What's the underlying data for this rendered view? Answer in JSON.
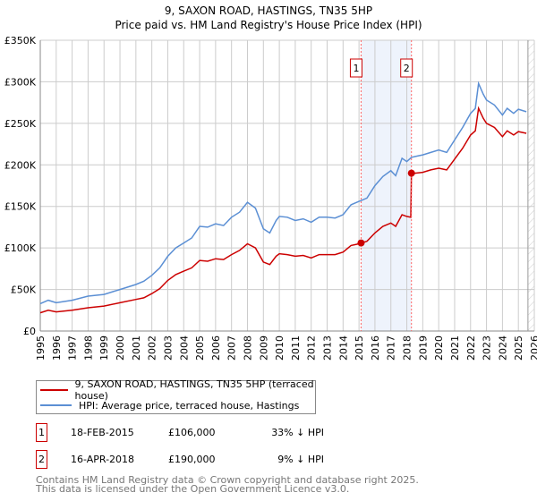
{
  "chart_data": {
    "type": "line",
    "title": "9, SAXON ROAD, HASTINGS, TN35 5HP",
    "subtitle": "Price paid vs. HM Land Registry's House Price Index (HPI)",
    "xlim": [
      1995,
      2026
    ],
    "ylim": [
      0,
      350000
    ],
    "grid": true,
    "x_ticks": [
      "1995",
      "1996",
      "1997",
      "1998",
      "1999",
      "2000",
      "2001",
      "2002",
      "2003",
      "2004",
      "2005",
      "2006",
      "2007",
      "2008",
      "2009",
      "2010",
      "2011",
      "2012",
      "2013",
      "2014",
      "2015",
      "2016",
      "2017",
      "2018",
      "2019",
      "2020",
      "2021",
      "2022",
      "2023",
      "2024",
      "2025",
      "2026"
    ],
    "y_ticks": [
      {
        "v": 0,
        "label": "£0"
      },
      {
        "v": 50000,
        "label": "£50K"
      },
      {
        "v": 100000,
        "label": "£100K"
      },
      {
        "v": 150000,
        "label": "£150K"
      },
      {
        "v": 200000,
        "label": "£200K"
      },
      {
        "v": 250000,
        "label": "£250K"
      },
      {
        "v": 300000,
        "label": "£300K"
      },
      {
        "v": 350000,
        "label": "£350K"
      }
    ],
    "highlight_range": [
      2015.13,
      2018.29
    ],
    "forecast_from": 2025.6,
    "series": [
      {
        "name": "9, SAXON ROAD, HASTINGS, TN35 5HP (terraced house)",
        "color": "#cc0000",
        "x": [
          1995,
          1995.5,
          1996,
          1997,
          1998,
          1999,
          2000,
          2001,
          2001.5,
          2002,
          2002.5,
          2003,
          2003.5,
          2004,
          2004.5,
          2005,
          2005.5,
          2006,
          2006.5,
          2007,
          2007.5,
          2008,
          2008.5,
          2009,
          2009.4,
          2009.8,
          2010,
          2010.5,
          2011,
          2011.5,
          2012,
          2012.5,
          2013,
          2013.5,
          2014,
          2014.5,
          2015,
          2015.13,
          2015.5,
          2016,
          2016.5,
          2017,
          2017.3,
          2017.7,
          2018,
          2018.25,
          2018.29,
          2018.5,
          2019,
          2019.5,
          2020,
          2020.5,
          2021,
          2021.5,
          2022,
          2022.3,
          2022.5,
          2022.8,
          2023,
          2023.5,
          2024,
          2024.3,
          2024.7,
          2025,
          2025.5
        ],
        "y": [
          22000,
          25000,
          23000,
          25000,
          28000,
          30000,
          34000,
          38000,
          40000,
          45000,
          51000,
          61000,
          68000,
          72000,
          76000,
          85000,
          84000,
          87000,
          86000,
          92000,
          97000,
          105000,
          100000,
          83000,
          80000,
          90000,
          93000,
          92000,
          90000,
          91000,
          88000,
          92000,
          92000,
          92000,
          95000,
          103000,
          105000,
          106000,
          108000,
          118000,
          126000,
          130000,
          126000,
          140000,
          138000,
          137000,
          190000,
          190000,
          191000,
          194000,
          196000,
          194000,
          207000,
          220000,
          236000,
          241000,
          268000,
          256000,
          250000,
          245000,
          234000,
          241000,
          236000,
          240000,
          238000
        ]
      },
      {
        "name": "HPI: Average price, terraced house, Hastings",
        "color": "#5b8fd4",
        "x": [
          1995,
          1995.5,
          1996,
          1997,
          1998,
          1999,
          2000,
          2001,
          2001.5,
          2002,
          2002.5,
          2003,
          2003.5,
          2004,
          2004.5,
          2005,
          2005.5,
          2006,
          2006.5,
          2007,
          2007.5,
          2008,
          2008.5,
          2009,
          2009.4,
          2009.8,
          2010,
          2010.5,
          2011,
          2011.5,
          2012,
          2012.5,
          2013,
          2013.5,
          2014,
          2014.5,
          2015,
          2015.13,
          2015.5,
          2016,
          2016.5,
          2017,
          2017.3,
          2017.7,
          2018,
          2018.29,
          2018.5,
          2019,
          2019.5,
          2020,
          2020.5,
          2021,
          2021.5,
          2022,
          2022.3,
          2022.5,
          2022.8,
          2023,
          2023.5,
          2024,
          2024.3,
          2024.7,
          2025,
          2025.5
        ],
        "y": [
          33000,
          37000,
          34000,
          37000,
          42000,
          44000,
          50000,
          56000,
          60000,
          67000,
          76000,
          90000,
          100000,
          106000,
          112000,
          126000,
          125000,
          129000,
          127000,
          137000,
          143000,
          155000,
          148000,
          123000,
          118000,
          133000,
          138000,
          137000,
          133000,
          135000,
          131000,
          137000,
          137000,
          136000,
          140000,
          152000,
          156000,
          157000,
          160000,
          175000,
          186000,
          193000,
          187000,
          208000,
          204000,
          209000,
          210000,
          212000,
          215000,
          218000,
          215000,
          230000,
          245000,
          262000,
          268000,
          298000,
          285000,
          278000,
          272000,
          260000,
          268000,
          262000,
          267000,
          264000
        ]
      }
    ],
    "sales": [
      {
        "id": "1",
        "x": 2015.13,
        "price": 106000,
        "date": "18-FEB-2015",
        "price_label": "£106,000",
        "hpi_label": "33% ↓ HPI"
      },
      {
        "id": "2",
        "x": 2018.29,
        "price": 190000,
        "date": "16-APR-2018",
        "price_label": "£190,000",
        "hpi_label": "9% ↓ HPI"
      }
    ]
  },
  "footer": {
    "line1": "Contains HM Land Registry data © Crown copyright and database right 2025.",
    "line2": "This data is licensed under the Open Government Licence v3.0."
  }
}
